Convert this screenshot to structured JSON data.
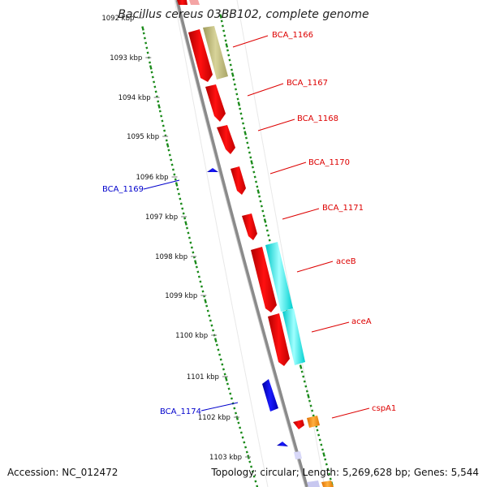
{
  "title": "Bacillus cereus 03BB102, complete genome",
  "ticks": [
    {
      "label": "1092 kbp"
    },
    {
      "label": "1093 kbp"
    },
    {
      "label": "1094 kbp"
    },
    {
      "label": "1095 kbp"
    },
    {
      "label": "1096 kbp"
    },
    {
      "label": "1097 kbp"
    },
    {
      "label": "1098 kbp"
    },
    {
      "label": "1099 kbp"
    },
    {
      "label": "1100 kbp"
    },
    {
      "label": "1101 kbp"
    },
    {
      "label": "1102 kbp"
    },
    {
      "label": "1103 kbp"
    }
  ],
  "gene_labels": [
    {
      "name": "BCA_1166",
      "color": "#dd0000"
    },
    {
      "name": "BCA_1167",
      "color": "#dd0000"
    },
    {
      "name": "BCA_1168",
      "color": "#dd0000"
    },
    {
      "name": "BCA_1170",
      "color": "#dd0000"
    },
    {
      "name": "BCA_1171",
      "color": "#dd0000"
    },
    {
      "name": "aceB",
      "color": "#dd0000"
    },
    {
      "name": "aceA",
      "color": "#dd0000"
    },
    {
      "name": "cspA1",
      "color": "#dd0000"
    },
    {
      "name": "BCA_1169",
      "color": "#0000cc"
    },
    {
      "name": "BCA_1174",
      "color": "#0000cc"
    }
  ],
  "footer": {
    "accession": "Accession: NC_012472",
    "summary": "Topology: circular; Length: 5,269,628 bp; Genes: 5,544"
  },
  "colors": {
    "forward_cds": "#ee0000",
    "reverse_cds": "#0000dd",
    "khaki_feature": "#bdb76b",
    "cyan_feature": "#00e5e5",
    "orange_feature": "#ff8c00",
    "gc_skew": "#1a8a1a",
    "backbone": "#888888"
  }
}
